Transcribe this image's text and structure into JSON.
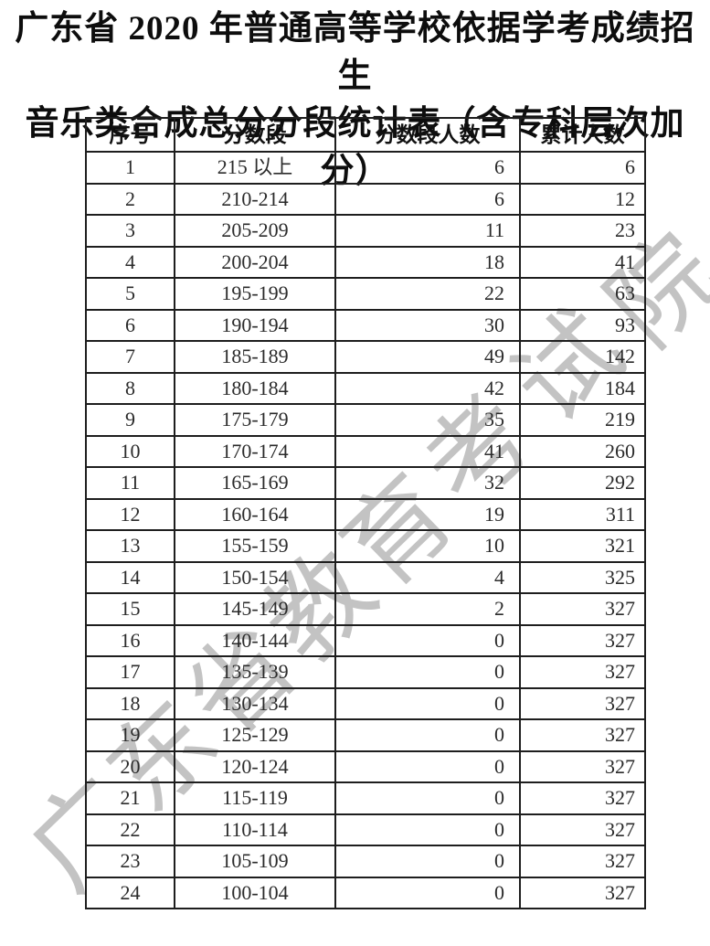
{
  "title": {
    "line1": "广东省 2020 年普通高等学校依据学考成绩招生",
    "line2": "音乐类合成总分分段统计表（含专科层次加分）"
  },
  "watermark": {
    "text": "广东省教育考试院",
    "color": "#b9b9b9"
  },
  "table": {
    "headers": [
      "序号",
      "分数段",
      "分数段人数",
      "累计人数"
    ],
    "rows": [
      [
        "1",
        "215 以上",
        "6",
        "6"
      ],
      [
        "2",
        "210-214",
        "6",
        "12"
      ],
      [
        "3",
        "205-209",
        "11",
        "23"
      ],
      [
        "4",
        "200-204",
        "18",
        "41"
      ],
      [
        "5",
        "195-199",
        "22",
        "63"
      ],
      [
        "6",
        "190-194",
        "30",
        "93"
      ],
      [
        "7",
        "185-189",
        "49",
        "142"
      ],
      [
        "8",
        "180-184",
        "42",
        "184"
      ],
      [
        "9",
        "175-179",
        "35",
        "219"
      ],
      [
        "10",
        "170-174",
        "41",
        "260"
      ],
      [
        "11",
        "165-169",
        "32",
        "292"
      ],
      [
        "12",
        "160-164",
        "19",
        "311"
      ],
      [
        "13",
        "155-159",
        "10",
        "321"
      ],
      [
        "14",
        "150-154",
        "4",
        "325"
      ],
      [
        "15",
        "145-149",
        "2",
        "327"
      ],
      [
        "16",
        "140-144",
        "0",
        "327"
      ],
      [
        "17",
        "135-139",
        "0",
        "327"
      ],
      [
        "18",
        "130-134",
        "0",
        "327"
      ],
      [
        "19",
        "125-129",
        "0",
        "327"
      ],
      [
        "20",
        "120-124",
        "0",
        "327"
      ],
      [
        "21",
        "115-119",
        "0",
        "327"
      ],
      [
        "22",
        "110-114",
        "0",
        "327"
      ],
      [
        "23",
        "105-109",
        "0",
        "327"
      ],
      [
        "24",
        "100-104",
        "0",
        "327"
      ]
    ]
  },
  "colors": {
    "background": "#ffffff",
    "table_border": "#1e1e1e",
    "title_text": "#0d0d0d",
    "cell_text": "#2b2b2b"
  }
}
